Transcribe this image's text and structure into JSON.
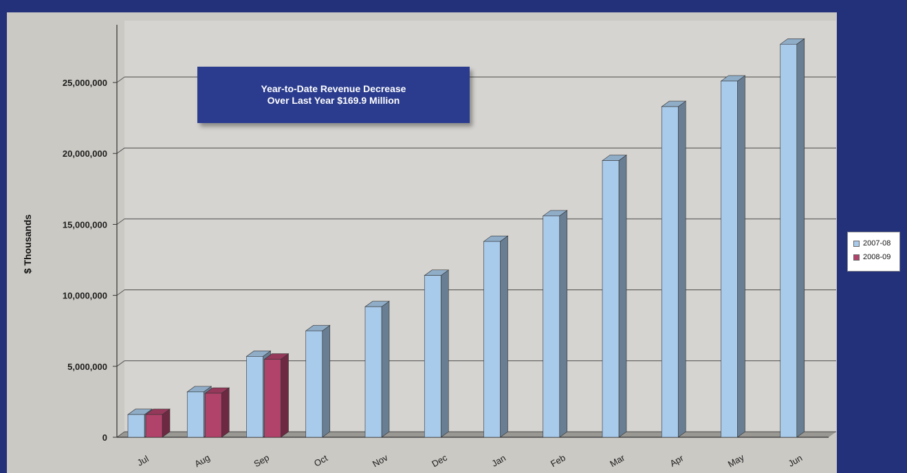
{
  "chart_data": {
    "type": "bar",
    "title": "",
    "xlabel": "",
    "ylabel": "$ Thousands",
    "ylim": [
      0,
      28000000
    ],
    "yticks": [
      0,
      5000000,
      10000000,
      15000000,
      20000000,
      25000000
    ],
    "ytick_labels": [
      "0",
      "5,000,000",
      "10,000,000",
      "15,000,000",
      "20,000,000",
      "25,000,000"
    ],
    "categories": [
      "Jul",
      "Aug",
      "Sep",
      "Oct",
      "Nov",
      "Dec",
      "Jan",
      "Feb",
      "Mar",
      "Apr",
      "May",
      "Jun"
    ],
    "series": [
      {
        "name": "2007-08",
        "color": "#a9cbeb",
        "values": [
          1600000,
          3200000,
          5700000,
          7500000,
          9200000,
          11400000,
          13800000,
          15600000,
          19500000,
          23300000,
          25100000,
          27700000
        ]
      },
      {
        "name": "2008-09",
        "color": "#b1426a",
        "values": [
          1600000,
          3100000,
          5500000,
          null,
          null,
          null,
          null,
          null,
          null,
          null,
          null,
          null
        ]
      }
    ],
    "grid": true,
    "legend_position": "right",
    "annotation": {
      "line1": "Year-to-Date Revenue Decrease",
      "line2": "Over Last Year $169.9 Million"
    }
  },
  "colors": {
    "background": "#23307a",
    "plot_area": "#d3d1cd",
    "annotation_box": "#2b3c8e"
  }
}
